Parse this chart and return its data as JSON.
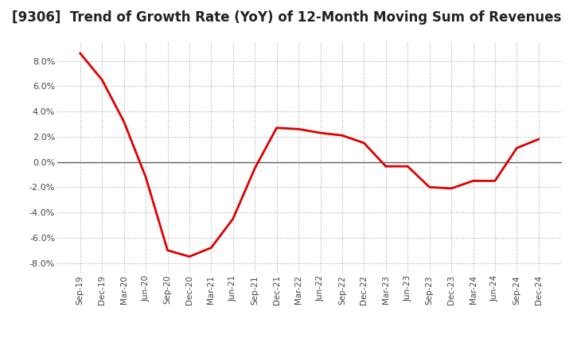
{
  "title": "[9306]  Trend of Growth Rate (YoY) of 12-Month Moving Sum of Revenues",
  "title_fontsize": 12,
  "background_color": "#ffffff",
  "grid_color": "#aaaaaa",
  "line_color": "#dd0000",
  "x_labels": [
    "Sep-19",
    "Dec-19",
    "Mar-20",
    "Jun-20",
    "Sep-20",
    "Dec-20",
    "Mar-21",
    "Jun-21",
    "Sep-21",
    "Dec-21",
    "Mar-22",
    "Jun-22",
    "Sep-22",
    "Dec-22",
    "Mar-23",
    "Jun-23",
    "Sep-23",
    "Dec-23",
    "Mar-24",
    "Jun-24",
    "Sep-24",
    "Dec-24"
  ],
  "y_values": [
    8.6,
    6.5,
    3.2,
    -1.2,
    -7.0,
    -7.5,
    -6.8,
    -4.5,
    -0.5,
    2.7,
    2.6,
    2.3,
    2.1,
    1.5,
    -0.35,
    -0.35,
    -2.0,
    -2.1,
    -1.5,
    -1.5,
    1.1,
    1.8
  ],
  "ylim": [
    -8.8,
    9.5
  ],
  "yticks": [
    -8.0,
    -6.0,
    -4.0,
    -2.0,
    0.0,
    2.0,
    4.0,
    6.0,
    8.0
  ],
  "zero_line_color": "#555555"
}
